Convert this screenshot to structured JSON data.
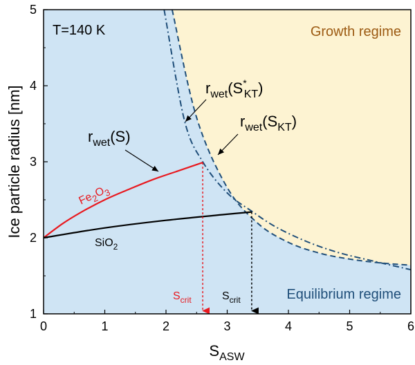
{
  "chart_data": {
    "type": "line",
    "title": "",
    "xlabel": "S",
    "xlabel_sub": "ASW",
    "ylabel": "Ice particle radius [nm]",
    "xlim": [
      0,
      6
    ],
    "ylim": [
      1,
      5
    ],
    "x_ticks": [
      0,
      1,
      2,
      3,
      4,
      5,
      6
    ],
    "y_ticks": [
      1,
      2,
      3,
      4,
      5
    ],
    "grid": false,
    "colors": {
      "equilibrium_fill": "#cfe4f4",
      "growth_fill": "#fdf3d2",
      "boundary": "#1f4e79",
      "fe2o3": "#e8191f",
      "sio2": "#000000",
      "growth_text": "#9c5a12",
      "equilibrium_text": "#1f4e79"
    },
    "temperature_label": "T=140 K",
    "regions": {
      "growth": "Growth regime",
      "equilibrium": "Equilibrium regime"
    },
    "series": [
      {
        "name": "r_wet(S*_KT)",
        "style": "dashed",
        "x": [
          2.1,
          2.5,
          3.0,
          3.5,
          4.0,
          4.5,
          5.0,
          5.5,
          6.0
        ],
        "y": [
          5.0,
          3.58,
          2.66,
          2.19,
          1.94,
          1.8,
          1.72,
          1.67,
          1.64
        ]
      },
      {
        "name": "r_wet(S_KT)",
        "style": "dashdot",
        "x": [
          1.97,
          2.3,
          2.6,
          3.0,
          3.4,
          3.8,
          4.3,
          4.8,
          5.3,
          6.0
        ],
        "y": [
          5.0,
          3.55,
          3.0,
          2.59,
          2.35,
          2.14,
          1.95,
          1.81,
          1.71,
          1.58
        ]
      },
      {
        "name": "Fe2O3",
        "x": [
          0,
          0.3,
          0.6,
          1.0,
          1.4,
          1.8,
          2.2,
          2.6
        ],
        "y": [
          2.0,
          2.18,
          2.33,
          2.5,
          2.64,
          2.77,
          2.88,
          2.99
        ]
      },
      {
        "name": "SiO2",
        "x": [
          0,
          1.0,
          2.0,
          3.0,
          3.4
        ],
        "y": [
          2.0,
          2.13,
          2.23,
          2.31,
          2.34
        ]
      }
    ],
    "critical_points": [
      {
        "label": "S",
        "sub": "crit",
        "x": 2.6,
        "y": 2.99,
        "color": "red"
      },
      {
        "label": "S",
        "sub": "crit",
        "x": 3.4,
        "y": 2.34,
        "color": "black"
      }
    ],
    "annotations": {
      "r_wet_S_main": "r",
      "r_wet_S_sub": "wet",
      "r_wet_S_tail": "(S)",
      "r_wet_SKT_main": "r",
      "r_wet_SKT_sub": "wet",
      "r_wet_SKT_open": "(S",
      "r_wet_SKT_sub2": "KT",
      "r_wet_SKT_close": ")",
      "r_wet_SKTs_main": "r",
      "r_wet_SKTs_sub": "wet",
      "r_wet_SKTs_open": "(S",
      "r_wet_SKTs_sup": "*",
      "r_wet_SKTs_sub2": "KT",
      "r_wet_SKTs_close": ")",
      "fe2o3_main": "Fe",
      "fe2o3_sub1": "2",
      "fe2o3_mid": "O",
      "fe2o3_sub2": "3",
      "sio2_main": "SiO",
      "sio2_sub": "2"
    }
  }
}
